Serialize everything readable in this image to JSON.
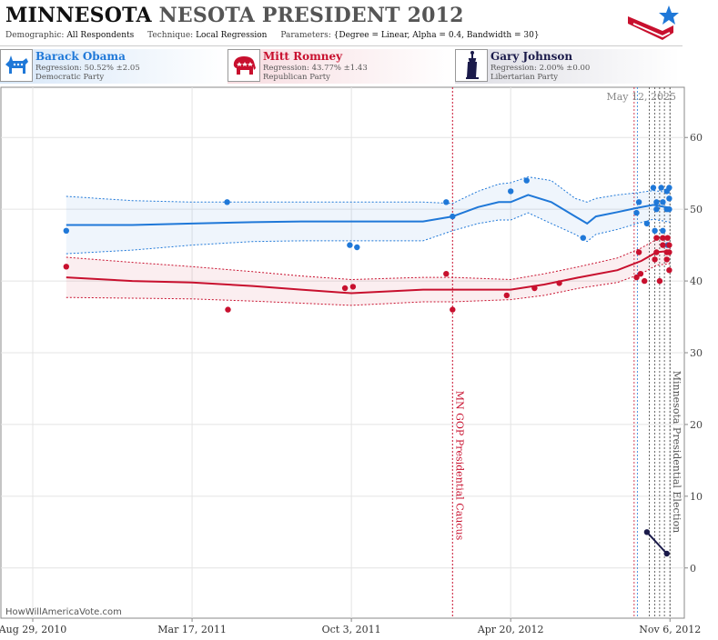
{
  "header": {
    "title_state": "MINNESOTA",
    "title_rest": "NESOTA PRESIDENT 2012",
    "demographic_label": "Demographic:",
    "demographic_value": "All Respondents",
    "technique_label": "Technique:",
    "technique_value": "Local Regression",
    "parameters_label": "Parameters:",
    "parameters_value": "{Degree = Linear, Alpha = 0.4, Bandwidth = 30}"
  },
  "candidates": [
    {
      "name": "Barack Obama",
      "regression": "Regression: 50.52% ±2.05",
      "party": "Democratic Party",
      "color": "#1f78d8",
      "icon": "donkey-icon"
    },
    {
      "name": "Mitt Romney",
      "regression": "Regression: 43.77% ±1.43",
      "party": "Republican Party",
      "color": "#c8102e",
      "icon": "elephant-icon"
    },
    {
      "name": "Gary Johnson",
      "regression": "Regression: 2.00% ±0.00",
      "party": "Libertarian Party",
      "color": "#1a1a4a",
      "icon": "statue-of-liberty-icon"
    }
  ],
  "footer": {
    "site": "HowWillAmericaVote.com"
  },
  "chart_data": {
    "type": "scatter",
    "date_label": "May 12, 2025",
    "x_tick_labels": [
      "Aug 29, 2010",
      "Mar 17, 2011",
      "Oct 3, 2011",
      "Apr 20, 2012",
      "Nov 6, 2012"
    ],
    "x_ticks": [
      "2010-08-29",
      "2011-03-17",
      "2011-10-03",
      "2012-04-20",
      "2012-11-06"
    ],
    "xlim": [
      "2010-07-20",
      "2012-11-24"
    ],
    "ylim": [
      -7,
      67
    ],
    "y_ticks": [
      0,
      10,
      20,
      30,
      40,
      50,
      60
    ],
    "grid": true,
    "events": [
      {
        "label": "MN GOP Presidential Caucus",
        "date": "2012-02-07",
        "color": "#c8102e"
      },
      {
        "label": "Minnesota Presidential Election",
        "date": "2012-11-06",
        "color": "#555555"
      }
    ],
    "poll_markers": [
      {
        "date": "2012-09-22",
        "color": "#c8102e"
      },
      {
        "date": "2012-09-26",
        "color": "#1f78d8"
      },
      {
        "date": "2012-10-11",
        "color": "#444444"
      },
      {
        "date": "2012-10-18",
        "color": "#444444"
      },
      {
        "date": "2012-10-24",
        "color": "#444444"
      },
      {
        "date": "2012-10-30",
        "color": "#444444"
      }
    ],
    "series": [
      {
        "name": "Barack Obama",
        "color": "#1f78d8",
        "points": [
          [
            "2010-10-10",
            47
          ],
          [
            "2011-04-30",
            51
          ],
          [
            "2011-10-01",
            45
          ],
          [
            "2011-10-10",
            44.7
          ],
          [
            "2012-01-30",
            51
          ],
          [
            "2012-02-07",
            49
          ],
          [
            "2012-04-20",
            52.5
          ],
          [
            "2012-05-10",
            54
          ],
          [
            "2012-07-20",
            46
          ],
          [
            "2012-09-25",
            49.5
          ],
          [
            "2012-09-28",
            51
          ],
          [
            "2012-10-08",
            48
          ],
          [
            "2012-10-16",
            53
          ],
          [
            "2012-10-18",
            47
          ],
          [
            "2012-10-20",
            51
          ],
          [
            "2012-10-20",
            50
          ],
          [
            "2012-10-26",
            53
          ],
          [
            "2012-10-28",
            47
          ],
          [
            "2012-10-28",
            51
          ],
          [
            "2012-11-02",
            52.5
          ],
          [
            "2012-11-02",
            50
          ],
          [
            "2012-11-03",
            45
          ],
          [
            "2012-11-05",
            53
          ],
          [
            "2012-11-05",
            51.5
          ],
          [
            "2012-11-05",
            50
          ]
        ],
        "trend": [
          [
            "2010-10-10",
            47.8
          ],
          [
            "2011-01-01",
            47.8
          ],
          [
            "2011-03-17",
            48.0
          ],
          [
            "2011-06-01",
            48.2
          ],
          [
            "2011-08-01",
            48.3
          ],
          [
            "2011-10-03",
            48.3
          ],
          [
            "2012-01-01",
            48.3
          ],
          [
            "2012-02-07",
            49.0
          ],
          [
            "2012-03-10",
            50.3
          ],
          [
            "2012-04-05",
            51.0
          ],
          [
            "2012-04-20",
            51.0
          ],
          [
            "2012-05-12",
            52.0
          ],
          [
            "2012-06-10",
            51.0
          ],
          [
            "2012-07-10",
            49.0
          ],
          [
            "2012-07-25",
            48.0
          ],
          [
            "2012-08-05",
            49.0
          ],
          [
            "2012-09-01",
            49.6
          ],
          [
            "2012-09-26",
            50.2
          ],
          [
            "2012-10-16",
            50.6
          ],
          [
            "2012-11-06",
            50.2
          ]
        ],
        "upper": [
          [
            "2010-10-10",
            51.8
          ],
          [
            "2011-01-01",
            51.2
          ],
          [
            "2011-03-17",
            51.0
          ],
          [
            "2011-06-01",
            51.0
          ],
          [
            "2011-08-01",
            51.0
          ],
          [
            "2011-10-03",
            51.0
          ],
          [
            "2012-01-01",
            51.0
          ],
          [
            "2012-02-07",
            50.8
          ],
          [
            "2012-03-10",
            52.5
          ],
          [
            "2012-04-05",
            53.5
          ],
          [
            "2012-04-20",
            53.7
          ],
          [
            "2012-05-12",
            54.5
          ],
          [
            "2012-06-10",
            54.0
          ],
          [
            "2012-07-10",
            51.5
          ],
          [
            "2012-07-25",
            51.0
          ],
          [
            "2012-08-05",
            51.5
          ],
          [
            "2012-09-01",
            52.0
          ],
          [
            "2012-09-26",
            52.3
          ],
          [
            "2012-10-16",
            52.6
          ],
          [
            "2012-11-06",
            52.3
          ]
        ],
        "lower": [
          [
            "2010-10-10",
            43.8
          ],
          [
            "2011-01-01",
            44.3
          ],
          [
            "2011-03-17",
            45.0
          ],
          [
            "2011-06-01",
            45.5
          ],
          [
            "2011-08-01",
            45.6
          ],
          [
            "2011-10-03",
            45.6
          ],
          [
            "2012-01-01",
            45.6
          ],
          [
            "2012-02-07",
            47.0
          ],
          [
            "2012-03-10",
            48.0
          ],
          [
            "2012-04-05",
            48.5
          ],
          [
            "2012-04-20",
            48.5
          ],
          [
            "2012-05-12",
            49.5
          ],
          [
            "2012-06-10",
            48.0
          ],
          [
            "2012-07-10",
            46.5
          ],
          [
            "2012-07-25",
            45.5
          ],
          [
            "2012-08-05",
            46.5
          ],
          [
            "2012-09-01",
            47.2
          ],
          [
            "2012-09-26",
            48.0
          ],
          [
            "2012-10-16",
            48.6
          ],
          [
            "2012-11-06",
            48.2
          ]
        ]
      },
      {
        "name": "Mitt Romney",
        "color": "#c8102e",
        "points": [
          [
            "2010-10-10",
            42
          ],
          [
            "2011-05-01",
            36
          ],
          [
            "2011-09-25",
            39
          ],
          [
            "2011-10-05",
            39.2
          ],
          [
            "2012-01-30",
            41
          ],
          [
            "2012-02-07",
            36
          ],
          [
            "2012-04-15",
            38
          ],
          [
            "2012-05-20",
            39
          ],
          [
            "2012-06-20",
            39.7
          ],
          [
            "2012-09-25",
            40.5
          ],
          [
            "2012-09-28",
            44
          ],
          [
            "2012-09-30",
            41
          ],
          [
            "2012-10-05",
            40
          ],
          [
            "2012-10-18",
            43
          ],
          [
            "2012-10-20",
            46
          ],
          [
            "2012-10-20",
            44
          ],
          [
            "2012-10-24",
            40
          ],
          [
            "2012-10-28",
            45
          ],
          [
            "2012-10-28",
            46
          ],
          [
            "2012-11-02",
            44
          ],
          [
            "2012-11-02",
            43
          ],
          [
            "2012-11-03",
            46
          ],
          [
            "2012-11-05",
            45
          ],
          [
            "2012-11-05",
            44
          ],
          [
            "2012-11-05",
            41.5
          ]
        ],
        "trend": [
          [
            "2010-10-10",
            40.5
          ],
          [
            "2011-01-01",
            40.0
          ],
          [
            "2011-03-17",
            39.8
          ],
          [
            "2011-06-01",
            39.3
          ],
          [
            "2011-08-01",
            38.8
          ],
          [
            "2011-10-03",
            38.3
          ],
          [
            "2012-01-01",
            38.8
          ],
          [
            "2012-02-07",
            38.8
          ],
          [
            "2012-04-20",
            38.8
          ],
          [
            "2012-06-01",
            39.5
          ],
          [
            "2012-07-15",
            40.5
          ],
          [
            "2012-09-01",
            41.5
          ],
          [
            "2012-10-01",
            42.8
          ],
          [
            "2012-10-20",
            44.0
          ],
          [
            "2012-11-06",
            44.2
          ]
        ],
        "upper": [
          [
            "2010-10-10",
            43.3
          ],
          [
            "2011-01-01",
            42.6
          ],
          [
            "2011-03-17",
            42.0
          ],
          [
            "2011-06-01",
            41.3
          ],
          [
            "2011-08-01",
            40.7
          ],
          [
            "2011-10-03",
            40.2
          ],
          [
            "2012-01-01",
            40.5
          ],
          [
            "2012-02-07",
            40.5
          ],
          [
            "2012-04-20",
            40.2
          ],
          [
            "2012-06-01",
            41.0
          ],
          [
            "2012-07-15",
            42.0
          ],
          [
            "2012-09-01",
            43.2
          ],
          [
            "2012-10-01",
            44.6
          ],
          [
            "2012-10-20",
            45.8
          ],
          [
            "2012-11-06",
            46.0
          ]
        ],
        "lower": [
          [
            "2010-10-10",
            37.7
          ],
          [
            "2011-01-01",
            37.6
          ],
          [
            "2011-03-17",
            37.5
          ],
          [
            "2011-06-01",
            37.2
          ],
          [
            "2011-08-01",
            36.9
          ],
          [
            "2011-10-03",
            36.6
          ],
          [
            "2012-01-01",
            37.1
          ],
          [
            "2012-02-07",
            37.1
          ],
          [
            "2012-04-20",
            37.4
          ],
          [
            "2012-06-01",
            38.0
          ],
          [
            "2012-07-15",
            39.0
          ],
          [
            "2012-09-01",
            39.8
          ],
          [
            "2012-10-01",
            41.0
          ],
          [
            "2012-10-20",
            42.2
          ],
          [
            "2012-11-06",
            42.4
          ]
        ]
      },
      {
        "name": "Gary Johnson",
        "color": "#1a1a4a",
        "points": [
          [
            "2012-10-08",
            5
          ],
          [
            "2012-11-02",
            2
          ]
        ],
        "trend": [
          [
            "2012-10-08",
            5
          ],
          [
            "2012-11-02",
            2
          ]
        ]
      }
    ]
  }
}
